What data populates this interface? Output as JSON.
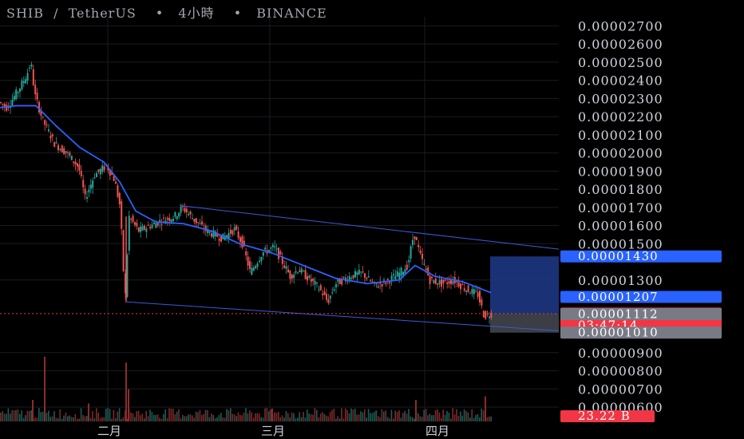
{
  "header": {
    "symbol": "SHIB",
    "separator": "/",
    "quote": "TetherUS",
    "dot1": "•",
    "interval": "4小時",
    "dot2": "•",
    "exchange": "BINANCE"
  },
  "colors": {
    "up": "#26a69a",
    "down": "#ef5350",
    "ma": "#2962ff",
    "channel": "#3a5bd9",
    "target_box": "#1e3a8a",
    "stop_box": "#4a4d55",
    "price_tag": "#f23645",
    "blue_tag": "#2962ff",
    "grey_tag": "#787b86"
  },
  "chart_data": {
    "type": "candlestick",
    "title": "SHIB / TetherUS • 4小時 • BINANCE",
    "ylim": [
      6e-06,
      2.75e-05
    ],
    "y_ticks": [
      "0.00002700",
      "0.00002600",
      "0.00002500",
      "0.00002400",
      "0.00002300",
      "0.00002200",
      "0.00002100",
      "0.00002000",
      "0.00001900",
      "0.00001800",
      "0.00001700",
      "0.00001600",
      "0.00001500",
      "0.00001300",
      "0.00000900",
      "0.00000800",
      "0.00000700",
      "0.00000600"
    ],
    "x_labels": [
      "二月",
      "三月",
      "四月"
    ],
    "price_path": [
      [
        0,
        2.28e-05
      ],
      [
        10,
        2.25e-05
      ],
      [
        25,
        2.35e-05
      ],
      [
        35,
        2.43e-05
      ],
      [
        40,
        2.5e-05
      ],
      [
        45,
        2.32e-05
      ],
      [
        55,
        2.18e-05
      ],
      [
        70,
        2.05e-05
      ],
      [
        85,
        2e-05
      ],
      [
        100,
        1.92e-05
      ],
      [
        108,
        1.75e-05
      ],
      [
        120,
        1.88e-05
      ],
      [
        135,
        1.93e-05
      ],
      [
        145,
        1.85e-05
      ],
      [
        152,
        1.7e-05
      ],
      [
        158,
        1.18e-05
      ],
      [
        163,
        1.65e-05
      ],
      [
        175,
        1.57e-05
      ],
      [
        190,
        1.6e-05
      ],
      [
        205,
        1.63e-05
      ],
      [
        220,
        1.65e-05
      ],
      [
        230,
        1.7e-05
      ],
      [
        245,
        1.63e-05
      ],
      [
        260,
        1.57e-05
      ],
      [
        280,
        1.53e-05
      ],
      [
        295,
        1.58e-05
      ],
      [
        305,
        1.5e-05
      ],
      [
        315,
        1.34e-05
      ],
      [
        330,
        1.45e-05
      ],
      [
        345,
        1.48e-05
      ],
      [
        355,
        1.4e-05
      ],
      [
        365,
        1.32e-05
      ],
      [
        375,
        1.36e-05
      ],
      [
        390,
        1.3e-05
      ],
      [
        402,
        1.25e-05
      ],
      [
        412,
        1.18e-05
      ],
      [
        422,
        1.28e-05
      ],
      [
        440,
        1.32e-05
      ],
      [
        455,
        1.34e-05
      ],
      [
        470,
        1.27e-05
      ],
      [
        485,
        1.29e-05
      ],
      [
        500,
        1.33e-05
      ],
      [
        512,
        1.38e-05
      ],
      [
        520,
        1.56e-05
      ],
      [
        528,
        1.43e-05
      ],
      [
        540,
        1.3e-05
      ],
      [
        555,
        1.28e-05
      ],
      [
        570,
        1.3e-05
      ],
      [
        585,
        1.25e-05
      ],
      [
        600,
        1.22e-05
      ],
      [
        608,
        1.1e-05
      ],
      [
        616,
        1.115e-05
      ]
    ],
    "ma_path": [
      [
        0,
        2.25e-05
      ],
      [
        20,
        2.26e-05
      ],
      [
        45,
        2.26e-05
      ],
      [
        70,
        2.15e-05
      ],
      [
        100,
        2.03e-05
      ],
      [
        130,
        1.95e-05
      ],
      [
        150,
        1.84e-05
      ],
      [
        170,
        1.68e-05
      ],
      [
        195,
        1.62e-05
      ],
      [
        230,
        1.61e-05
      ],
      [
        265,
        1.57e-05
      ],
      [
        300,
        1.5e-05
      ],
      [
        340,
        1.45e-05
      ],
      [
        380,
        1.38e-05
      ],
      [
        420,
        1.31e-05
      ],
      [
        460,
        1.28e-05
      ],
      [
        500,
        1.3e-05
      ],
      [
        520,
        1.38e-05
      ],
      [
        545,
        1.32e-05
      ],
      [
        580,
        1.29e-05
      ],
      [
        615,
        1.23e-05
      ]
    ],
    "channel": {
      "upper": [
        [
          225,
          1.71e-05
        ],
        [
          700,
          1.47e-05
        ]
      ],
      "lower": [
        [
          157,
          1.18e-05
        ],
        [
          700,
          1.02e-05
        ]
      ]
    },
    "target_box": {
      "x1": 614,
      "x2": 700,
      "top": 1.43e-05,
      "bottom": 1.115e-05
    },
    "stop_box": {
      "x1": 614,
      "x2": 700,
      "top": 1.115e-05,
      "bottom": 1.01e-05
    },
    "volume_spikes": [
      [
        55,
        0.9
      ],
      [
        157,
        0.82
      ],
      [
        160,
        0.45
      ],
      [
        607,
        0.35
      ],
      [
        40,
        0.3
      ],
      [
        110,
        0.25
      ],
      [
        520,
        0.3
      ],
      [
        340,
        0.18
      ]
    ],
    "tags": [
      {
        "label": "0.00001430",
        "kind": "blue",
        "value": 1.43e-05
      },
      {
        "label": "0.00001207",
        "kind": "blue",
        "value": 1.207e-05
      },
      {
        "label": "0.00001115",
        "kind": "price",
        "value": 1.115e-05,
        "countdown": "03:47:14"
      },
      {
        "label": "0.00001112",
        "kind": "grey",
        "value": 1.112e-05
      },
      {
        "label": "0.00001010",
        "kind": "grey",
        "value": 1.01e-05
      }
    ],
    "volume_tag": "23.22 B"
  }
}
